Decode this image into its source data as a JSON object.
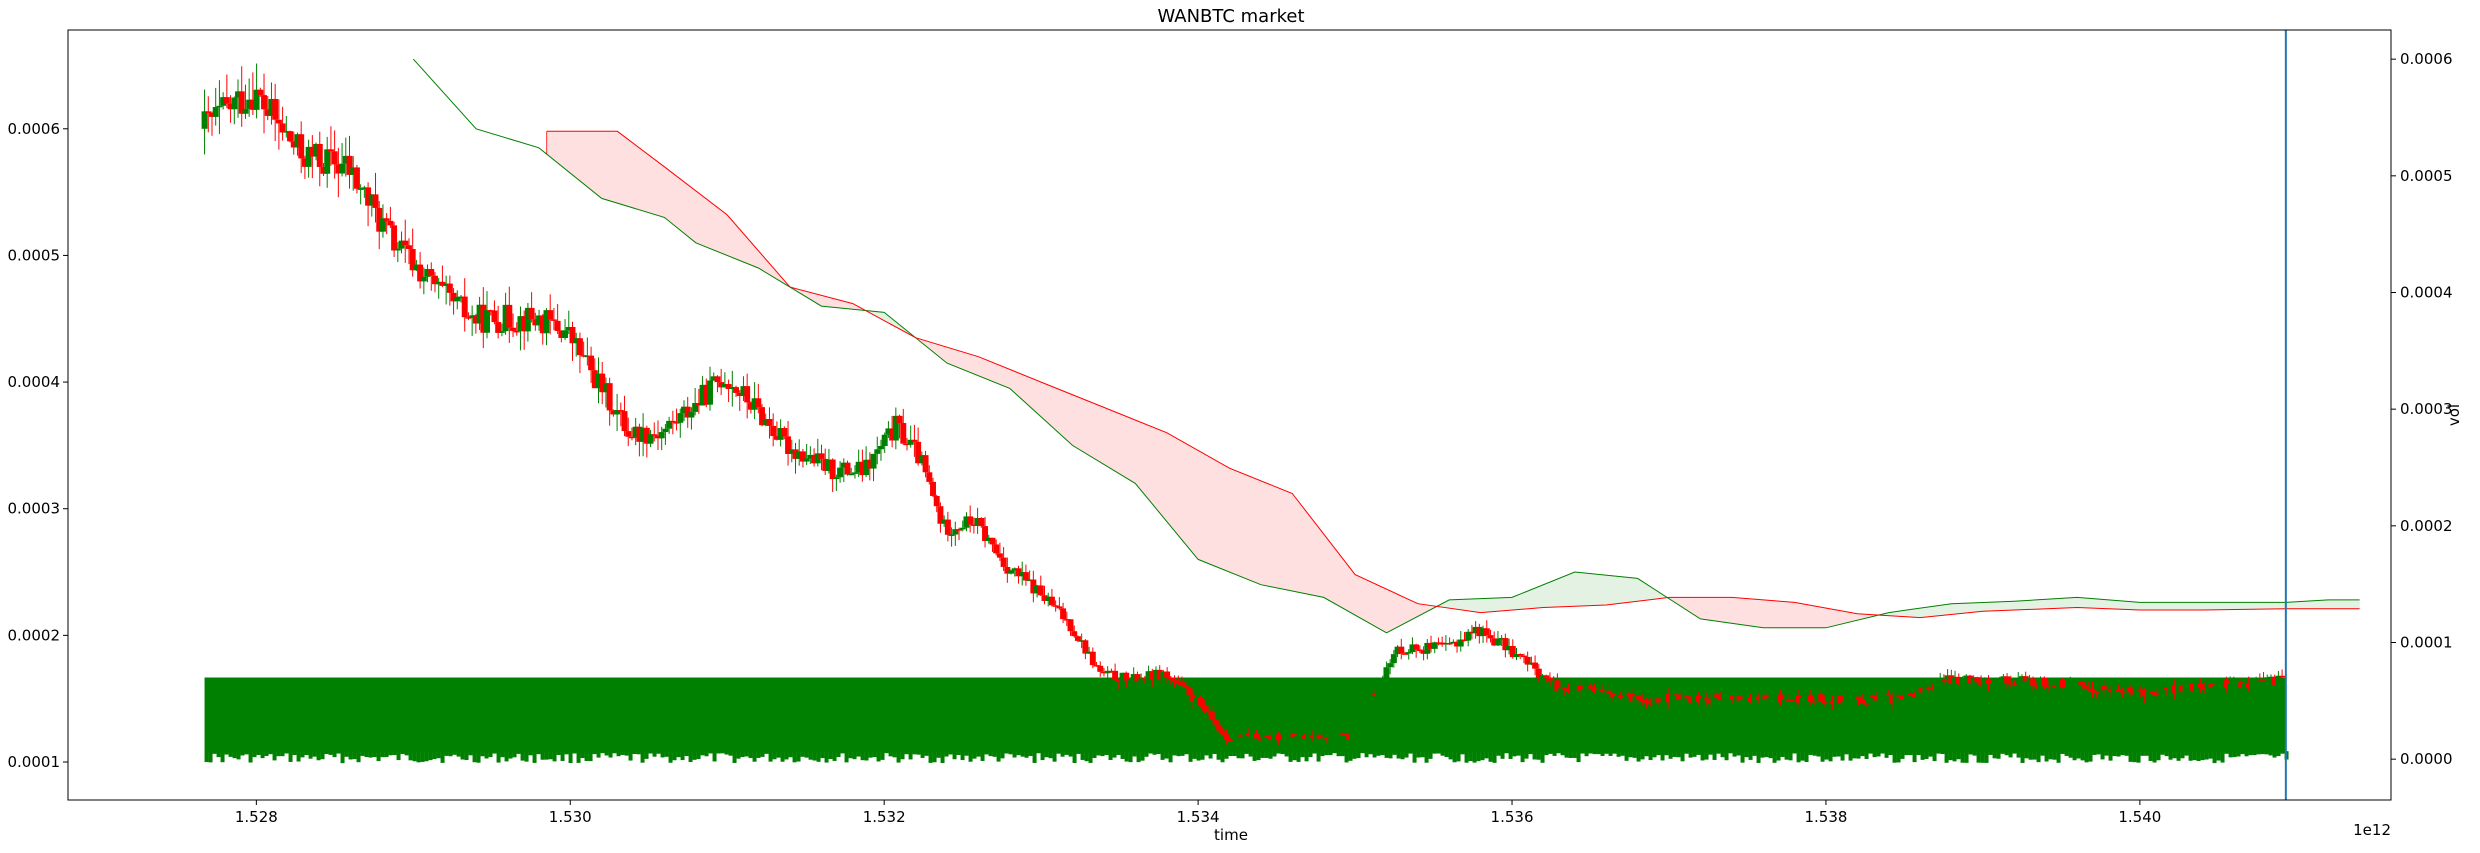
{
  "chart_data": {
    "type": "candlestick",
    "title": "WANBTC market",
    "xlabel": "time",
    "ylabel": "",
    "y2label": "vol",
    "x_offset_label": "1e12",
    "x_unit_scale": 1000000000000.0,
    "xlim": [
      1.5268,
      1.5416
    ],
    "ylim": [
      7e-05,
      0.000678
    ],
    "y2lim": [
      -3.5e-05,
      0.000625
    ],
    "x_ticks": [
      1.528,
      1.53,
      1.532,
      1.534,
      1.536,
      1.538,
      1.54
    ],
    "x_tick_labels": [
      "1.528",
      "1.530",
      "1.532",
      "1.534",
      "1.536",
      "1.538",
      "1.540"
    ],
    "y_ticks": [
      0.0001,
      0.0002,
      0.0003,
      0.0004,
      0.0005,
      0.0006
    ],
    "y_tick_labels": [
      "0.0001",
      "0.0002",
      "0.0003",
      "0.0004",
      "0.0005",
      "0.0006"
    ],
    "y2_ticks": [
      0.0,
      0.0001,
      0.0002,
      0.0003,
      0.0004,
      0.0005,
      0.0006
    ],
    "y2_tick_labels": [
      "0.0000",
      "0.0001",
      "0.0002",
      "0.0003",
      "0.0004",
      "0.0005",
      "0.0006"
    ],
    "grid": false,
    "colors": {
      "up": "#008000",
      "down": "#ff0000",
      "cloud_green_line": "#008000",
      "cloud_red_line": "#ff0000",
      "cloud_red_fill": "#ffe0e0",
      "cloud_green_fill": "#e4f2e4",
      "marker_line": "#1f77b4",
      "volume": "#008000"
    },
    "vertical_marker_x": 1.54093,
    "price_path": [
      [
        1.52767,
        0.0006
      ],
      [
        1.528,
        0.00063
      ],
      [
        1.5283,
        0.00058
      ],
      [
        1.5286,
        0.00057
      ],
      [
        1.5289,
        0.00051
      ],
      [
        1.5292,
        0.00047
      ],
      [
        1.5294,
        0.00045
      ],
      [
        1.5298,
        0.00045
      ],
      [
        1.53,
        0.00044
      ],
      [
        1.5302,
        0.0004
      ],
      [
        1.5304,
        0.00036
      ],
      [
        1.5306,
        0.00036
      ],
      [
        1.5308,
        0.00038
      ],
      [
        1.531,
        0.000405
      ],
      [
        1.5312,
        0.00038
      ],
      [
        1.5314,
        0.00035
      ],
      [
        1.5317,
        0.00033
      ],
      [
        1.5319,
        0.00033
      ],
      [
        1.5321,
        0.000365
      ],
      [
        1.53225,
        0.00034
      ],
      [
        1.5324,
        0.000285
      ],
      [
        1.5326,
        0.00029
      ],
      [
        1.5328,
        0.000255
      ],
      [
        1.533,
        0.000235
      ],
      [
        1.5332,
        0.00021
      ],
      [
        1.5334,
        0.00017
      ],
      [
        1.5336,
        0.000165
      ],
      [
        1.5338,
        0.00017
      ],
      [
        1.534,
        0.00015
      ],
      [
        1.5342,
        0.00012
      ],
      [
        1.5345,
        0.00012
      ],
      [
        1.535,
        0.00012
      ],
      [
        1.5353,
        0.00019
      ],
      [
        1.5356,
        0.00019
      ],
      [
        1.5358,
        0.000205
      ],
      [
        1.536,
        0.00019
      ],
      [
        1.5363,
        0.00016
      ],
      [
        1.5368,
        0.00015
      ],
      [
        1.5375,
        0.00015
      ],
      [
        1.5385,
        0.00015
      ],
      [
        1.5388,
        0.000165
      ],
      [
        1.5392,
        0.000165
      ],
      [
        1.54,
        0.000155
      ],
      [
        1.5405,
        0.00016
      ],
      [
        1.54093,
        0.000165
      ]
    ],
    "cloud_green": [
      [
        1.529,
        0.000655
      ],
      [
        1.5294,
        0.0006
      ],
      [
        1.5298,
        0.000585
      ],
      [
        1.5302,
        0.000545
      ],
      [
        1.5306,
        0.00053
      ],
      [
        1.5308,
        0.00051
      ],
      [
        1.5312,
        0.00049
      ],
      [
        1.5316,
        0.00046
      ],
      [
        1.532,
        0.000455
      ],
      [
        1.5324,
        0.000415
      ],
      [
        1.5328,
        0.000395
      ],
      [
        1.5332,
        0.00035
      ],
      [
        1.5336,
        0.00032
      ],
      [
        1.534,
        0.00026
      ],
      [
        1.5344,
        0.00024
      ],
      [
        1.5348,
        0.00023
      ],
      [
        1.5352,
        0.000202
      ],
      [
        1.5356,
        0.000228
      ],
      [
        1.536,
        0.00023
      ],
      [
        1.5364,
        0.00025
      ],
      [
        1.5368,
        0.000245
      ],
      [
        1.5372,
        0.000213
      ],
      [
        1.5376,
        0.000206
      ],
      [
        1.538,
        0.000206
      ],
      [
        1.5384,
        0.000218
      ],
      [
        1.5388,
        0.000225
      ],
      [
        1.5392,
        0.000227
      ],
      [
        1.5396,
        0.00023
      ],
      [
        1.54,
        0.000226
      ],
      [
        1.5404,
        0.000226
      ],
      [
        1.54093,
        0.000226
      ],
      [
        1.5412,
        0.000228
      ],
      [
        1.5414,
        0.000228
      ]
    ],
    "cloud_red": [
      [
        1.52985,
        0.000598
      ],
      [
        1.5303,
        0.000598
      ],
      [
        1.5306,
        0.00057
      ],
      [
        1.531,
        0.000532
      ],
      [
        1.5314,
        0.000475
      ],
      [
        1.5318,
        0.000462
      ],
      [
        1.5322,
        0.000435
      ],
      [
        1.5326,
        0.00042
      ],
      [
        1.533,
        0.0004
      ],
      [
        1.5334,
        0.00038
      ],
      [
        1.5338,
        0.00036
      ],
      [
        1.5342,
        0.000332
      ],
      [
        1.5346,
        0.000312
      ],
      [
        1.535,
        0.000248
      ],
      [
        1.5354,
        0.000225
      ],
      [
        1.5358,
        0.000218
      ],
      [
        1.5362,
        0.000222
      ],
      [
        1.5366,
        0.000224
      ],
      [
        1.537,
        0.00023
      ],
      [
        1.5374,
        0.00023
      ],
      [
        1.5378,
        0.000226
      ],
      [
        1.5382,
        0.000217
      ],
      [
        1.5386,
        0.000214
      ],
      [
        1.539,
        0.000219
      ],
      [
        1.5396,
        0.000222
      ],
      [
        1.54,
        0.00022
      ],
      [
        1.5404,
        0.00022
      ],
      [
        1.54093,
        0.000221
      ],
      [
        1.5414,
        0.000221
      ]
    ],
    "volume_band": {
      "x_start": 1.52767,
      "x_end": 1.54093,
      "top_vol": 7e-05,
      "base_vol": 6e-06
    }
  }
}
